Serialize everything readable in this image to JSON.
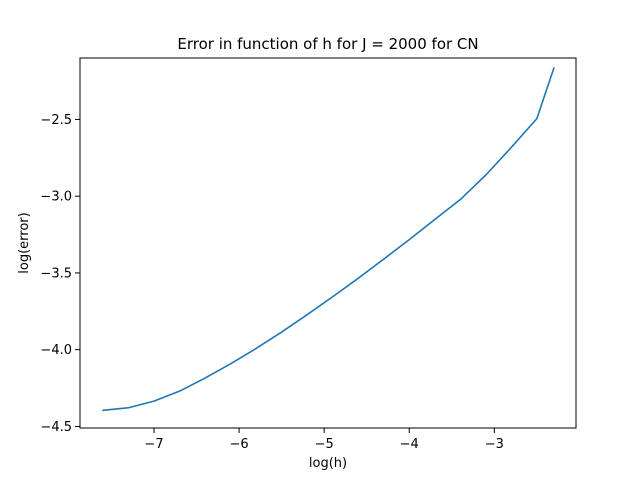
{
  "chart_data": {
    "type": "line",
    "title": "Error in function of h for J = 2000 for CN",
    "xlabel": "log(h)",
    "ylabel": "log(error)",
    "xlim": [
      -7.87,
      -2.04
    ],
    "ylim": [
      -4.51,
      -2.1
    ],
    "grid": false,
    "xticks": [
      {
        "value": -7,
        "label": "−7"
      },
      {
        "value": -6,
        "label": "−6"
      },
      {
        "value": -5,
        "label": "−5"
      },
      {
        "value": -4,
        "label": "−4"
      },
      {
        "value": -3,
        "label": "−3"
      }
    ],
    "yticks": [
      {
        "value": -4.5,
        "label": "−4.5"
      },
      {
        "value": -4.0,
        "label": "−4.0"
      },
      {
        "value": -3.5,
        "label": "−3.5"
      },
      {
        "value": -3.0,
        "label": "−3.0"
      },
      {
        "value": -2.5,
        "label": "−2.5"
      }
    ],
    "series": [
      {
        "color": "#1f77b4",
        "x": [
          -7.6,
          -7.3,
          -7.0,
          -6.7,
          -6.4,
          -6.1,
          -5.8,
          -5.5,
          -5.2,
          -4.9,
          -4.6,
          -4.3,
          -4.0,
          -3.7,
          -3.4,
          -3.1,
          -2.8,
          -2.5,
          -2.3
        ],
        "y": [
          -4.395,
          -4.378,
          -4.335,
          -4.27,
          -4.185,
          -4.092,
          -3.992,
          -3.885,
          -3.772,
          -3.655,
          -3.535,
          -3.41,
          -3.283,
          -3.152,
          -3.022,
          -2.862,
          -2.682,
          -2.495,
          -2.165
        ]
      }
    ]
  }
}
